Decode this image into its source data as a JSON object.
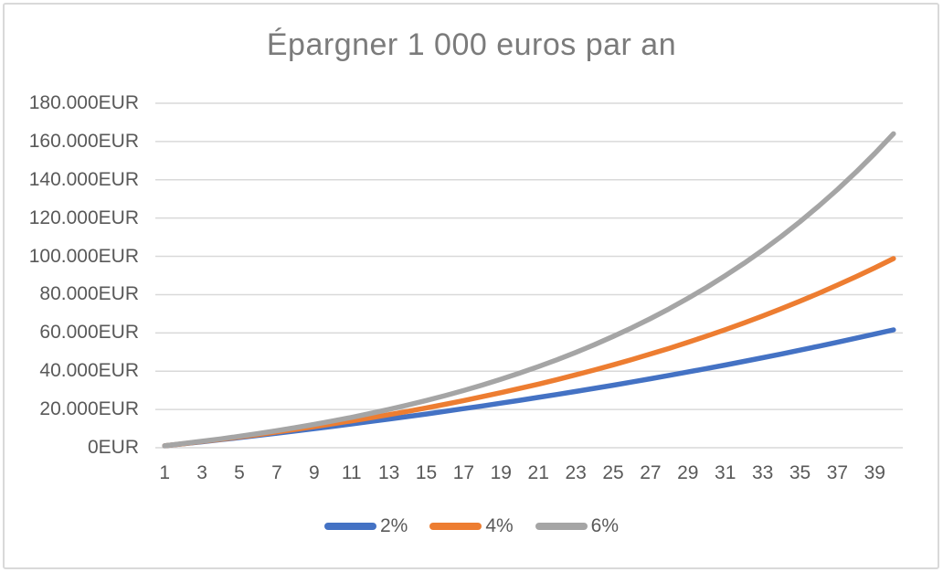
{
  "chart_data": {
    "type": "line",
    "title": "Épargner 1 000 euros par an",
    "xlabel": "",
    "ylabel": "",
    "x": [
      1,
      2,
      3,
      4,
      5,
      6,
      7,
      8,
      9,
      10,
      11,
      12,
      13,
      14,
      15,
      16,
      17,
      18,
      19,
      20,
      21,
      22,
      23,
      24,
      25,
      26,
      27,
      28,
      29,
      30,
      31,
      32,
      33,
      34,
      35,
      36,
      37,
      38,
      39,
      40
    ],
    "xtick_labels": [
      "1",
      "3",
      "5",
      "7",
      "9",
      "11",
      "13",
      "15",
      "17",
      "19",
      "21",
      "23",
      "25",
      "27",
      "29",
      "31",
      "33",
      "35",
      "37",
      "39"
    ],
    "ylim": [
      0,
      180000
    ],
    "ytick_step": 20000,
    "ytick_labels": [
      "0EUR",
      "20.000EUR",
      "40.000EUR",
      "60.000EUR",
      "80.000EUR",
      "100.000EUR",
      "120.000EUR",
      "140.000EUR",
      "160.000EUR",
      "180.000EUR"
    ],
    "grid": "horizontal",
    "legend_position": "bottom",
    "series": [
      {
        "name": "2%",
        "color": "#4472C4",
        "values": [
          1020,
          2060,
          3122,
          4204,
          5308,
          6434,
          7583,
          8755,
          9950,
          11169,
          12412,
          13680,
          14974,
          16293,
          17639,
          19012,
          20412,
          21841,
          23297,
          24783,
          26299,
          27845,
          29422,
          31030,
          32671,
          34344,
          36051,
          37792,
          39568,
          41379,
          43227,
          45112,
          47034,
          48994,
          50994,
          53034,
          55115,
          57237,
          59402,
          61610
        ]
      },
      {
        "name": "4%",
        "color": "#ED7D31",
        "values": [
          1040,
          2122,
          3246,
          4416,
          5633,
          6898,
          8214,
          9583,
          11006,
          12486,
          14026,
          15627,
          17292,
          19024,
          20825,
          22698,
          24645,
          26671,
          28778,
          30969,
          33248,
          35618,
          38083,
          40646,
          43312,
          46084,
          48968,
          51966,
          55085,
          58328,
          61701,
          65210,
          68858,
          72652,
          76598,
          80702,
          84970,
          89409,
          94026,
          98827
        ]
      },
      {
        "name": "6%",
        "color": "#A5A5A5",
        "values": [
          1060,
          2184,
          3375,
          4637,
          5975,
          7394,
          8897,
          10491,
          12181,
          13972,
          15870,
          17882,
          20015,
          22276,
          24673,
          27213,
          29906,
          32760,
          35786,
          38993,
          42392,
          45996,
          49816,
          53865,
          58156,
          62706,
          67528,
          72640,
          78058,
          83802,
          89890,
          96343,
          103184,
          110435,
          118121,
          126268,
          134904,
          144058,
          153762,
          164048
        ]
      }
    ],
    "colors": {
      "gridline": "#D9D9D9",
      "axis_text": "#595959",
      "title_text": "#7B7B7B",
      "chart_border": "#D9D9D9",
      "background": "#FFFFFF"
    }
  }
}
